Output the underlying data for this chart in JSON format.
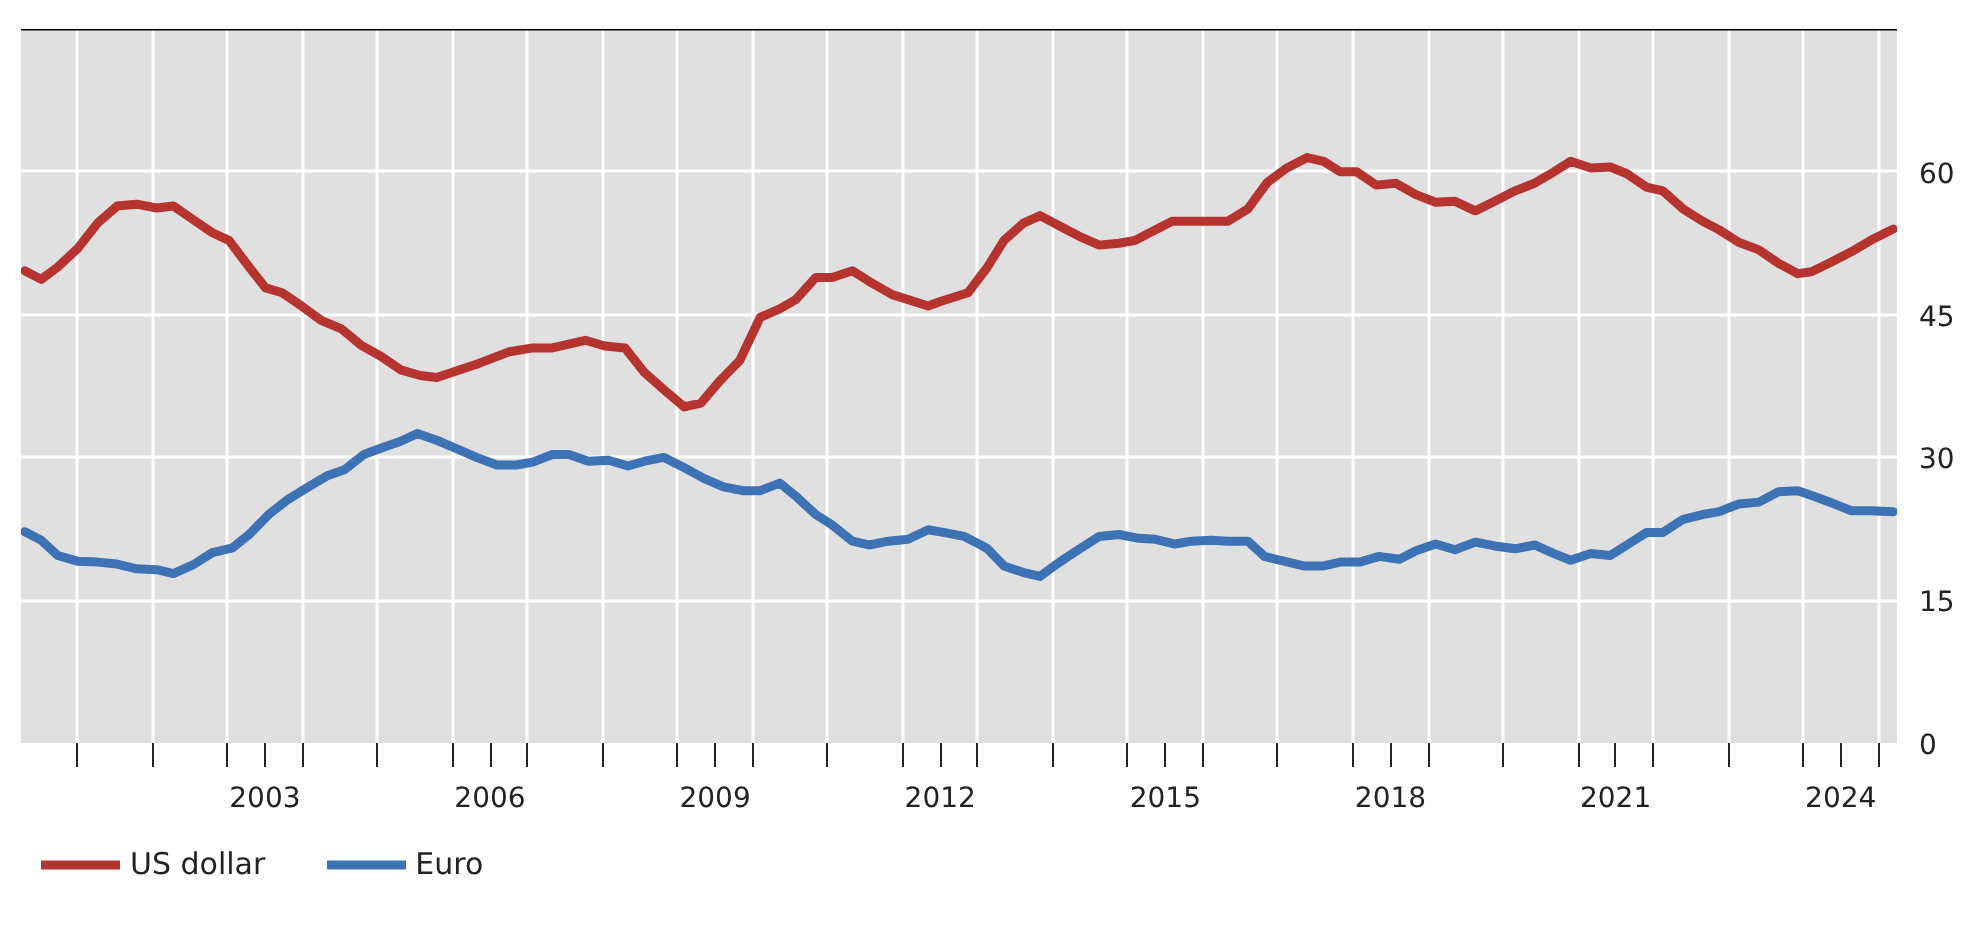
{
  "chart_data": {
    "type": "line",
    "xlim": [
      2000.25,
      2025.25
    ],
    "xticks": [
      {
        "value": 2001,
        "label": null
      },
      {
        "value": 2002,
        "label": null
      },
      {
        "value": 2003,
        "label": null
      },
      {
        "value": 2004,
        "label": null
      },
      {
        "value": 2005,
        "label": null
      },
      {
        "value": 2006,
        "label": null
      },
      {
        "value": 2007,
        "label": null
      },
      {
        "value": 2008,
        "label": null
      },
      {
        "value": 2009,
        "label": null
      },
      {
        "value": 2010,
        "label": null
      },
      {
        "value": 2011,
        "label": null
      },
      {
        "value": 2012,
        "label": null
      },
      {
        "value": 2013,
        "label": null
      },
      {
        "value": 2014,
        "label": null
      },
      {
        "value": 2015,
        "label": null
      },
      {
        "value": 2016,
        "label": null
      },
      {
        "value": 2017,
        "label": null
      },
      {
        "value": 2018,
        "label": null
      },
      {
        "value": 2019,
        "label": null
      },
      {
        "value": 2020,
        "label": null
      },
      {
        "value": 2021,
        "label": null
      },
      {
        "value": 2022,
        "label": null
      },
      {
        "value": 2023,
        "label": null
      },
      {
        "value": 2024,
        "label": null
      },
      {
        "value": 2025,
        "label": null
      },
      {
        "value": 2003.5,
        "label": "2003"
      },
      {
        "value": 2006.5,
        "label": "2006"
      },
      {
        "value": 2009.5,
        "label": "2009"
      },
      {
        "value": 2012.5,
        "label": "2012"
      },
      {
        "value": 2015.5,
        "label": "2015"
      },
      {
        "value": 2018.5,
        "label": "2018"
      },
      {
        "value": 2021.5,
        "label": "2021"
      },
      {
        "value": 2024.5,
        "label": "2024"
      }
    ],
    "ylim": [
      0,
      75
    ],
    "yticks": [
      0,
      15,
      30,
      45,
      60
    ],
    "grid": true,
    "legend": "bottom left",
    "marker": "none",
    "line_style": "solid",
    "series": [
      {
        "name": "US dollar",
        "color": "#b5342f",
        "x": [
          2000.3,
          2000.52,
          2000.74,
          2001.0,
          2001.27,
          2001.53,
          2001.79,
          2002.06,
          2002.28,
          2002.54,
          2002.8,
          2003.02,
          2003.29,
          2003.51,
          2003.73,
          2003.99,
          2004.25,
          2004.52,
          2004.78,
          2005.05,
          2005.31,
          2005.57,
          2005.79,
          2006.1,
          2006.36,
          2006.76,
          2007.07,
          2007.33,
          2007.77,
          2008.03,
          2008.3,
          2008.56,
          2008.82,
          2009.09,
          2009.31,
          2009.57,
          2009.83,
          2010.1,
          2010.36,
          2010.58,
          2010.84,
          2011.06,
          2011.33,
          2011.55,
          2011.86,
          2012.34,
          2012.51,
          2012.87,
          2013.13,
          2013.35,
          2013.61,
          2013.83,
          2014.09,
          2014.36,
          2014.62,
          2014.88,
          2015.1,
          2015.37,
          2015.59,
          2015.85,
          2016.11,
          2016.33,
          2016.6,
          2016.86,
          2017.12,
          2017.39,
          2017.61,
          2017.83,
          2018.05,
          2018.31,
          2018.57,
          2018.84,
          2019.1,
          2019.36,
          2019.63,
          2019.89,
          2020.16,
          2020.42,
          2020.68,
          2020.9,
          2021.17,
          2021.43,
          2021.65,
          2021.91,
          2022.13,
          2022.4,
          2022.66,
          2022.88,
          2023.14,
          2023.41,
          2023.67,
          2023.93,
          2024.11,
          2024.37,
          2024.64,
          2024.9,
          2025.2
        ],
        "values": [
          49.6,
          48.7,
          50.0,
          51.9,
          54.6,
          56.4,
          56.6,
          56.2,
          56.4,
          55.0,
          53.6,
          52.8,
          50.0,
          47.8,
          47.3,
          45.9,
          44.4,
          43.5,
          41.8,
          40.6,
          39.2,
          38.6,
          38.4,
          39.2,
          39.9,
          41.1,
          41.5,
          41.5,
          42.3,
          41.7,
          41.5,
          38.9,
          37.1,
          35.3,
          35.7,
          38.1,
          40.2,
          44.7,
          45.6,
          46.6,
          48.9,
          48.9,
          49.6,
          48.5,
          47.1,
          45.9,
          46.4,
          47.3,
          50.0,
          52.8,
          54.6,
          55.4,
          54.3,
          53.2,
          52.3,
          52.5,
          52.8,
          53.9,
          54.8,
          54.8,
          54.8,
          54.8,
          56.1,
          58.9,
          60.4,
          61.5,
          61.1,
          60.0,
          60.0,
          58.6,
          58.8,
          57.6,
          56.8,
          56.9,
          55.9,
          56.9,
          58.0,
          58.8,
          60.0,
          61.1,
          60.4,
          60.5,
          59.8,
          58.4,
          58.0,
          56.1,
          54.8,
          53.9,
          52.6,
          51.8,
          50.4,
          49.3,
          49.5,
          50.5,
          51.6,
          52.8,
          54.0
        ]
      },
      {
        "name": "Euro",
        "color": "#3d72b4",
        "x": [
          2000.3,
          2000.52,
          2000.74,
          2001.0,
          2001.27,
          2001.53,
          2001.79,
          2002.06,
          2002.28,
          2002.54,
          2002.8,
          2003.07,
          2003.29,
          2003.55,
          2003.81,
          2004.08,
          2004.34,
          2004.56,
          2004.82,
          2005.09,
          2005.31,
          2005.53,
          2005.79,
          2006.06,
          2006.32,
          2006.59,
          2006.85,
          2007.07,
          2007.33,
          2007.55,
          2007.81,
          2008.08,
          2008.34,
          2008.56,
          2008.82,
          2009.09,
          2009.35,
          2009.61,
          2009.88,
          2010.1,
          2010.36,
          2010.58,
          2010.84,
          2011.06,
          2011.33,
          2011.55,
          2011.81,
          2012.07,
          2012.34,
          2012.56,
          2012.82,
          2013.04,
          2013.13,
          2013.35,
          2013.61,
          2013.83,
          2014.09,
          2014.36,
          2014.62,
          2014.88,
          2015.15,
          2015.37,
          2015.63,
          2015.85,
          2016.11,
          2016.33,
          2016.6,
          2016.82,
          2017.08,
          2017.34,
          2017.61,
          2017.83,
          2018.09,
          2018.35,
          2018.62,
          2018.84,
          2019.1,
          2019.36,
          2019.63,
          2019.89,
          2020.16,
          2020.42,
          2020.68,
          2020.9,
          2021.17,
          2021.43,
          2021.65,
          2021.91,
          2022.13,
          2022.4,
          2022.66,
          2022.88,
          2023.14,
          2023.41,
          2023.67,
          2023.93,
          2024.15,
          2024.42,
          2024.64,
          2024.9,
          2025.2
        ],
        "values": [
          22.2,
          21.3,
          19.7,
          19.1,
          19.0,
          18.8,
          18.3,
          18.2,
          17.8,
          18.7,
          20.0,
          20.5,
          21.9,
          24.0,
          25.6,
          26.9,
          28.1,
          28.7,
          30.3,
          31.1,
          31.7,
          32.5,
          31.8,
          30.9,
          30.0,
          29.2,
          29.2,
          29.5,
          30.3,
          30.3,
          29.6,
          29.7,
          29.1,
          29.6,
          30.0,
          28.9,
          27.8,
          26.9,
          26.5,
          26.5,
          27.3,
          25.9,
          24.0,
          22.9,
          21.2,
          20.8,
          21.2,
          21.4,
          22.4,
          22.1,
          21.7,
          20.8,
          20.4,
          18.6,
          17.9,
          17.5,
          19.0,
          20.4,
          21.7,
          21.9,
          21.5,
          21.4,
          20.9,
          21.2,
          21.3,
          21.2,
          21.2,
          19.6,
          19.1,
          18.6,
          18.6,
          19.0,
          19.0,
          19.6,
          19.3,
          20.2,
          20.9,
          20.3,
          21.1,
          20.7,
          20.4,
          20.8,
          19.9,
          19.2,
          19.9,
          19.7,
          20.8,
          22.1,
          22.1,
          23.5,
          24.0,
          24.3,
          25.1,
          25.3,
          26.4,
          26.5,
          25.9,
          25.1,
          24.4,
          24.4,
          24.3
        ]
      }
    ]
  }
}
